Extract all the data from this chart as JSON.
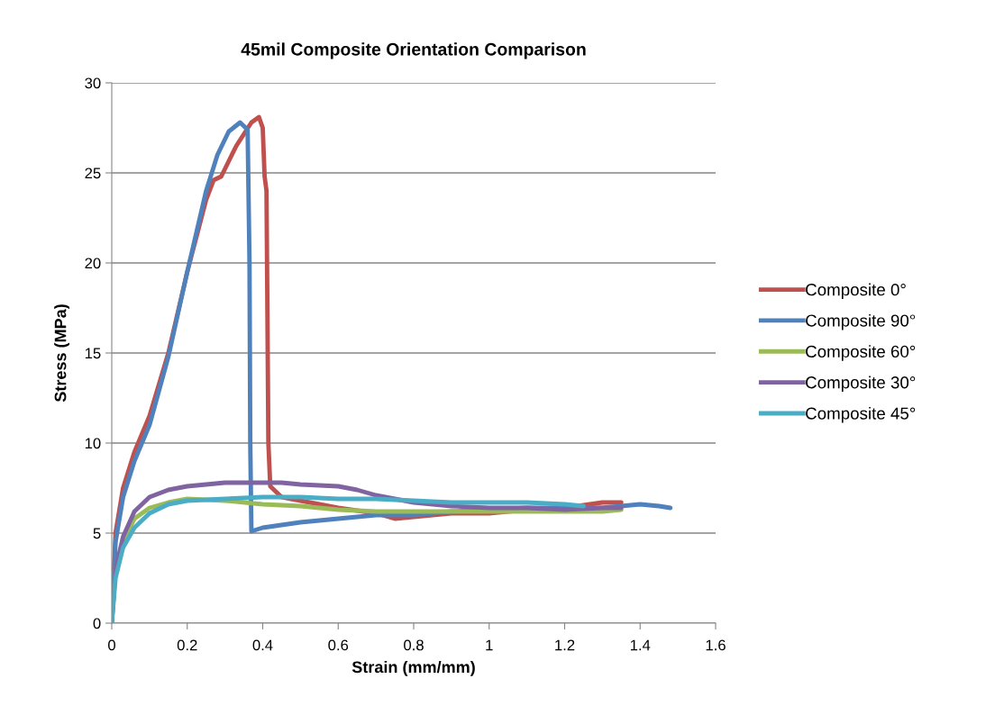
{
  "chart_data": {
    "type": "line",
    "title": "45mil Composite Orientation Comparison",
    "xlabel": "Strain (mm/mm)",
    "ylabel": "Stress (MPa)",
    "xlim": [
      0,
      1.6
    ],
    "xticks": [
      0,
      0.2,
      0.4,
      0.6,
      0.8,
      1,
      1.2,
      1.4,
      1.6
    ],
    "ylim": [
      0,
      30
    ],
    "yticks": [
      0,
      5,
      10,
      15,
      20,
      25,
      30
    ],
    "grid": "y",
    "legend": "right",
    "marker": "none",
    "line_style": "solid",
    "series": [
      {
        "name": "Composite 0°",
        "color": "#c0504d",
        "x": [
          0,
          0.01,
          0.03,
          0.06,
          0.1,
          0.15,
          0.2,
          0.25,
          0.27,
          0.29,
          0.33,
          0.37,
          0.39,
          0.4,
          0.405,
          0.41,
          0.415,
          0.42,
          0.45,
          0.5,
          0.6,
          0.7,
          0.75,
          0.8,
          0.9,
          1.0,
          1.1,
          1.2,
          1.3,
          1.35
        ],
        "values": [
          0,
          5,
          7.5,
          9.5,
          11.5,
          15,
          19.5,
          23.5,
          24.6,
          24.8,
          26.5,
          27.8,
          28.1,
          27.5,
          24.8,
          24,
          10,
          7.6,
          7.0,
          6.8,
          6.4,
          6.1,
          5.8,
          5.9,
          6.1,
          6.1,
          6.3,
          6.4,
          6.7,
          6.7
        ]
      },
      {
        "name": "Composite 90°",
        "color": "#4f81bd",
        "x": [
          0,
          0.01,
          0.03,
          0.06,
          0.1,
          0.15,
          0.2,
          0.25,
          0.28,
          0.31,
          0.34,
          0.36,
          0.365,
          0.367,
          0.37,
          0.4,
          0.5,
          0.6,
          0.7,
          0.8,
          0.9,
          1.0,
          1.1,
          1.2,
          1.3,
          1.4,
          1.45,
          1.48
        ],
        "values": [
          0,
          4.5,
          7,
          9,
          11,
          14.8,
          19.5,
          24,
          26,
          27.3,
          27.8,
          27.4,
          20,
          10,
          5.1,
          5.3,
          5.6,
          5.8,
          6.0,
          6.0,
          6.2,
          6.3,
          6.4,
          6.4,
          6.4,
          6.6,
          6.5,
          6.4
        ]
      },
      {
        "name": "Composite 60°",
        "color": "#9bbb59",
        "x": [
          0,
          0.01,
          0.03,
          0.06,
          0.1,
          0.15,
          0.2,
          0.3,
          0.4,
          0.5,
          0.6,
          0.7,
          0.8,
          0.9,
          1.0,
          1.1,
          1.2,
          1.3,
          1.35
        ],
        "values": [
          0,
          3,
          4.5,
          5.8,
          6.4,
          6.7,
          6.9,
          6.8,
          6.6,
          6.5,
          6.3,
          6.2,
          6.2,
          6.2,
          6.2,
          6.2,
          6.2,
          6.2,
          6.3
        ]
      },
      {
        "name": "Composite 30°",
        "color": "#8064a2",
        "x": [
          0,
          0.01,
          0.03,
          0.06,
          0.1,
          0.15,
          0.2,
          0.3,
          0.4,
          0.45,
          0.5,
          0.6,
          0.65,
          0.7,
          0.75,
          0.8,
          0.9,
          1.0,
          1.1,
          1.2,
          1.3,
          1.35
        ],
        "values": [
          0,
          3,
          4.8,
          6.2,
          7.0,
          7.4,
          7.6,
          7.8,
          7.8,
          7.8,
          7.7,
          7.6,
          7.4,
          7.1,
          6.9,
          6.7,
          6.5,
          6.4,
          6.4,
          6.3,
          6.4,
          6.4
        ]
      },
      {
        "name": "Composite 45°",
        "color": "#4bacc6",
        "x": [
          0,
          0.01,
          0.03,
          0.06,
          0.1,
          0.15,
          0.2,
          0.3,
          0.4,
          0.5,
          0.6,
          0.7,
          0.8,
          0.9,
          1.0,
          1.1,
          1.2,
          1.25
        ],
        "values": [
          0,
          2.5,
          4.2,
          5.3,
          6.1,
          6.6,
          6.8,
          6.9,
          7.0,
          7.0,
          6.9,
          6.9,
          6.8,
          6.7,
          6.7,
          6.7,
          6.6,
          6.5
        ]
      }
    ]
  }
}
